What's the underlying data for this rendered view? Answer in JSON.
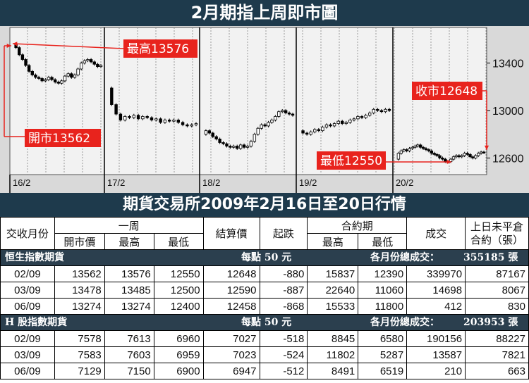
{
  "header": {
    "title": "2月期指上周即市圖",
    "subtitle": "期貨交易所2009年2月16日至20日行情"
  },
  "chart_data": {
    "type": "candlestick",
    "y_ticks": [
      "13400",
      "13000",
      "12600"
    ],
    "ylim": [
      12460,
      13700
    ],
    "x_labels": [
      "16/2",
      "17/2",
      "18/2",
      "19/2",
      "20/2"
    ],
    "days": [
      {
        "label": "16/2",
        "open": 13562,
        "close": 13380,
        "path": [
          13562,
          13530,
          13470,
          13430,
          13380,
          13330,
          13300,
          13280,
          13270,
          13250,
          13260,
          13280,
          13260,
          13240,
          13230,
          13250,
          13290,
          13310,
          13280,
          13300,
          13350,
          13400,
          13420,
          13430,
          13410,
          13390,
          13370,
          13380
        ]
      },
      {
        "label": "17/2",
        "open": 13190,
        "close": 12890,
        "path": [
          13190,
          13050,
          12970,
          12920,
          12950,
          12940,
          12960,
          12930,
          12950,
          12940,
          12920,
          12930,
          12900,
          12920,
          12910,
          12920,
          12900,
          12880,
          12870,
          12880,
          12890
        ]
      },
      {
        "label": "18/2",
        "open": 12800,
        "close": 12960,
        "path": [
          12800,
          12830,
          12810,
          12780,
          12760,
          12730,
          12720,
          12700,
          12690,
          12700,
          12680,
          12710,
          12690,
          12700,
          12740,
          12800,
          12850,
          12880,
          12870,
          12900,
          12920,
          12950,
          12990,
          13000,
          12980,
          12970,
          12960
        ]
      },
      {
        "label": "19/2",
        "open": 12830,
        "close": 13000,
        "path": [
          12830,
          12810,
          12800,
          12820,
          12840,
          12830,
          12860,
          12880,
          12870,
          12890,
          12910,
          12890,
          12900,
          12920,
          12930,
          12950,
          12940,
          12960,
          12980,
          13010,
          13000,
          12990,
          13010,
          13000
        ]
      },
      {
        "label": "20/2",
        "open": 12590,
        "close": 12648,
        "path": [
          12590,
          12640,
          12660,
          12670,
          12660,
          12680,
          12690,
          12700,
          12710,
          12690,
          12680,
          12670,
          12660,
          12640,
          12630,
          12620,
          12600,
          12590,
          12570,
          12570,
          12590,
          12610,
          12620,
          12610,
          12620,
          12640,
          12630,
          12610,
          12600,
          12620,
          12640,
          12650,
          12648
        ]
      }
    ],
    "annotations": {
      "high": "最高13576",
      "open": "開市13562",
      "low": "最低12550",
      "close": "收市12648"
    },
    "colors": {
      "annotation": "#e8231d",
      "candle": "#000000",
      "background": "#d9d9d9",
      "grid": "#9a9a9a"
    }
  },
  "table": {
    "headers": {
      "month": "交收月份",
      "week": "一周",
      "open": "開市價",
      "high": "最高",
      "low": "最低",
      "settle": "結算價",
      "change": "起跌",
      "contract": "合約期",
      "c_high": "最高",
      "c_low": "最低",
      "volume": "成交",
      "oi_line1": "上日未平倉",
      "oi_line2": "合約（張）"
    },
    "sections": [
      {
        "name": "恒生指數期貨",
        "per_point": "每點 50 元",
        "total_label": "各月份總成交：",
        "total": "355185 張",
        "rows": [
          [
            "02/09",
            "13562",
            "13576",
            "12550",
            "12648",
            "-880",
            "15837",
            "12390",
            "339970",
            "87167"
          ],
          [
            "03/09",
            "13478",
            "13485",
            "12500",
            "12590",
            "-887",
            "22640",
            "11060",
            "14698",
            "8067"
          ],
          [
            "06/09",
            "13274",
            "13274",
            "12400",
            "12458",
            "-868",
            "15533",
            "11800",
            "412",
            "830"
          ]
        ]
      },
      {
        "name": "H 股指數期貨",
        "per_point": "每點 50 元",
        "total_label": "各月份總成交：",
        "total": "203953 張",
        "rows": [
          [
            "02/09",
            "7578",
            "7613",
            "6960",
            "7027",
            "-518",
            "8845",
            "6580",
            "190156",
            "88227"
          ],
          [
            "03/09",
            "7583",
            "7603",
            "6959",
            "7023",
            "-524",
            "11802",
            "5287",
            "13587",
            "7821"
          ],
          [
            "06/09",
            "7129",
            "7150",
            "6900",
            "6947",
            "-512",
            "8491",
            "6519",
            "210",
            "663"
          ]
        ]
      }
    ]
  }
}
